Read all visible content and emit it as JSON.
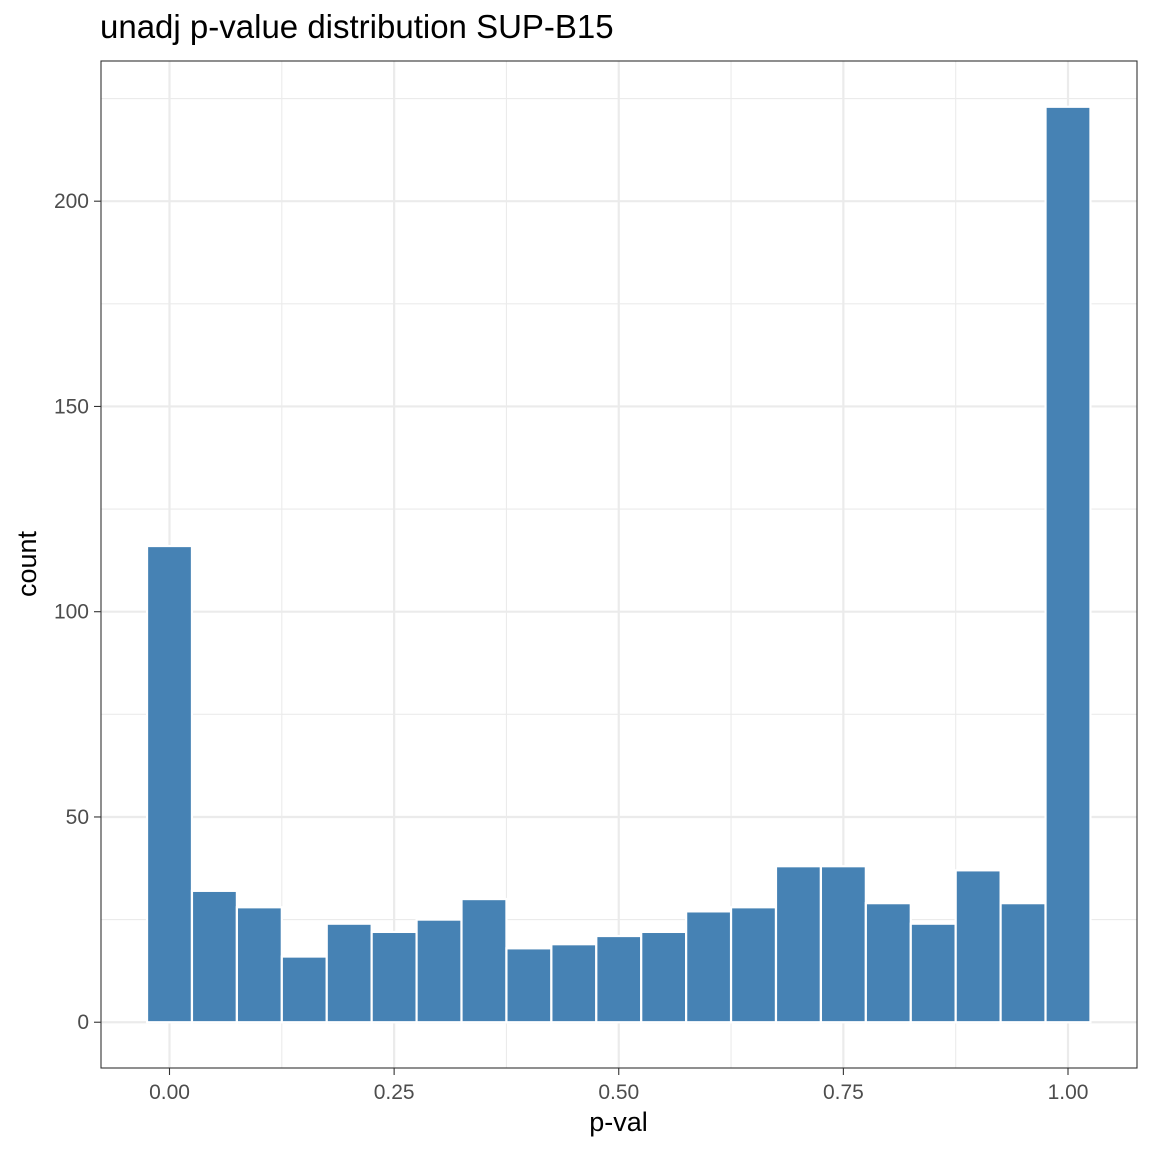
{
  "chart_data": {
    "type": "bar",
    "title": "unadj p-value distribution SUP-B15",
    "xlabel": "p-val",
    "ylabel": "count",
    "bin_width": 0.05,
    "x": [
      0.0,
      0.05,
      0.1,
      0.15,
      0.2,
      0.25,
      0.3,
      0.35,
      0.4,
      0.45,
      0.5,
      0.55,
      0.6,
      0.65,
      0.7,
      0.75,
      0.8,
      0.85,
      0.9,
      0.95,
      1.0
    ],
    "values": [
      116,
      32,
      28,
      16,
      24,
      22,
      25,
      30,
      18,
      19,
      21,
      22,
      27,
      28,
      38,
      38,
      29,
      24,
      37,
      29,
      223
    ],
    "xlim": [
      -0.1525,
      2.1025
    ],
    "ylim": [
      -11.15,
      234.15
    ],
    "x_ticks": [
      0.0,
      0.25,
      0.5,
      0.75,
      1.0
    ],
    "x_tick_labels": [
      "0.00",
      "0.25",
      "0.50",
      "0.75",
      "1.00"
    ],
    "y_ticks": [
      0,
      50,
      100,
      150,
      200
    ],
    "y_tick_labels": [
      "0",
      "50",
      "100",
      "150",
      "200"
    ],
    "bar_color": "#4682B4",
    "bar_outline": "#ffffff",
    "grid": true,
    "grid_color": "#ebebeb",
    "panel_border_color": "#333333",
    "legend": "none"
  }
}
